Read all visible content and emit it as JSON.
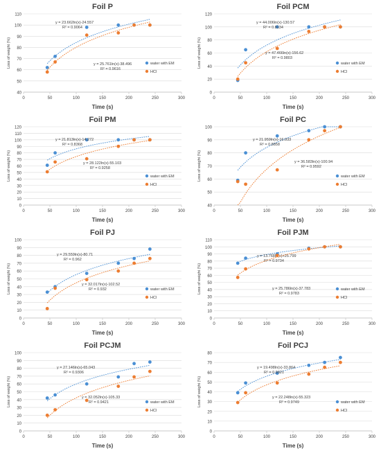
{
  "colors": {
    "water": "#4a8fd4",
    "hcl": "#ed7d31",
    "grid": "#d9d9d9",
    "axis": "#595959",
    "text": "#404040"
  },
  "chart_data": [
    {
      "type": "scatter",
      "title": "Foil P",
      "xlabel": "Time (s)",
      "ylabel": "Loss of weight (%)",
      "xlim": [
        0,
        300
      ],
      "ylim": [
        40,
        110
      ],
      "xticks": [
        0,
        50,
        100,
        150,
        200,
        250,
        300
      ],
      "yticks": [
        40,
        50,
        60,
        70,
        80,
        90,
        100,
        110
      ],
      "grid": true,
      "legend_position": "right",
      "series": [
        {
          "name": "water with EM",
          "x": [
            45,
            60,
            120,
            180,
            210,
            240
          ],
          "y": [
            62,
            72,
            98,
            100,
            100,
            100
          ],
          "trendline": {
            "equation": "y = 23.662ln(x)-24.557",
            "r2": "R² = 0.9064",
            "a": 23.662,
            "b": -24.557
          }
        },
        {
          "name": "HCl",
          "x": [
            45,
            60,
            120,
            180,
            210,
            240
          ],
          "y": [
            58,
            67,
            91,
            93,
            100,
            100
          ],
          "trendline": {
            "equation": "y = 25.761ln(x)-38.496",
            "r2": "R² = 0.9616",
            "a": 25.761,
            "b": -38.496
          }
        }
      ]
    },
    {
      "type": "scatter",
      "title": "Foil PCM",
      "xlabel": "Time (s)",
      "ylabel": "Loss of weight (%)",
      "xlim": [
        0,
        300
      ],
      "ylim": [
        0,
        120
      ],
      "xticks": [
        0,
        50,
        100,
        150,
        200,
        250,
        300
      ],
      "yticks": [
        0,
        20,
        40,
        60,
        80,
        100,
        120
      ],
      "grid": true,
      "legend_position": "right",
      "series": [
        {
          "name": "water with EM",
          "x": [
            45,
            60,
            120,
            180,
            210,
            240
          ],
          "y": [
            18,
            65,
            100,
            100,
            100,
            100
          ],
          "trendline": {
            "equation": "y = 44.006ln(x)-130.57",
            "r2": "R² = 0.8134",
            "a": 44.006,
            "b": -130.57
          }
        },
        {
          "name": "HCl",
          "x": [
            45,
            60,
            120,
            180,
            210,
            240
          ],
          "y": [
            20,
            45,
            67,
            93,
            100,
            100
          ],
          "trendline": {
            "equation": "y = 47.466ln(x)-156.62",
            "r2": "R² = 0.9803",
            "a": 47.466,
            "b": -156.62
          }
        }
      ]
    },
    {
      "type": "scatter",
      "title": "Foil PM",
      "xlabel": "Time (s)",
      "ylabel": "Loss of weight (%)",
      "xlim": [
        0,
        300
      ],
      "ylim": [
        0,
        120
      ],
      "xticks": [
        0,
        50,
        100,
        150,
        200,
        250,
        300
      ],
      "yticks": [
        0,
        10,
        20,
        30,
        40,
        50,
        60,
        70,
        80,
        90,
        100,
        110,
        120
      ],
      "grid": true,
      "legend_position": "right",
      "series": [
        {
          "name": "water with EM",
          "x": [
            45,
            60,
            120,
            180,
            210,
            240
          ],
          "y": [
            61,
            80,
            100,
            100,
            100,
            100
          ],
          "trendline": {
            "equation": "y = 21.813ln(x)-14.272",
            "r2": "R² = 0.8368",
            "a": 21.813,
            "b": -14.272
          }
        },
        {
          "name": "HCl",
          "x": [
            45,
            60,
            120,
            180,
            210,
            240
          ],
          "y": [
            51,
            66,
            71,
            90,
            100,
            100
          ],
          "trendline": {
            "equation": "y = 28.122ln(x)-55.103",
            "r2": "R² = 0.9258",
            "a": 28.122,
            "b": -55.103
          }
        }
      ]
    },
    {
      "type": "scatter",
      "title": "Foil PC",
      "xlabel": "Time (s)",
      "ylabel": "Loss of weight (%)",
      "xlim": [
        0,
        300
      ],
      "ylim": [
        40,
        100
      ],
      "xticks": [
        0,
        50,
        100,
        150,
        200,
        250,
        300
      ],
      "yticks": [
        40,
        50,
        60,
        70,
        80,
        90,
        100
      ],
      "grid": true,
      "legend_position": "right",
      "series": [
        {
          "name": "water with EM",
          "x": [
            45,
            60,
            120,
            180,
            210,
            240
          ],
          "y": [
            59,
            80,
            93,
            97,
            100,
            100
          ],
          "trendline": {
            "equation": "y = 21.959ln(x)-16.933",
            "r2": "R² = 0.8858",
            "a": 21.959,
            "b": -16.933
          }
        },
        {
          "name": "HCl",
          "x": [
            45,
            60,
            120,
            180,
            210,
            240
          ],
          "y": [
            58,
            56,
            67,
            90,
            97,
            100
          ],
          "trendline": {
            "equation": "y = 36.583ln(x)-100.94",
            "r2": "R² = 0.9592",
            "a": 36.583,
            "b": -100.94
          }
        }
      ]
    },
    {
      "type": "scatter",
      "title": "Foil PJ",
      "xlabel": "Time (s)",
      "ylabel": "Loss of weight (%)",
      "xlim": [
        0,
        300
      ],
      "ylim": [
        0,
        100
      ],
      "xticks": [
        0,
        50,
        100,
        150,
        200,
        250,
        300
      ],
      "yticks": [
        0,
        10,
        20,
        30,
        40,
        50,
        60,
        70,
        80,
        90,
        100
      ],
      "grid": true,
      "legend_position": "right",
      "series": [
        {
          "name": "water with EM",
          "x": [
            45,
            60,
            120,
            180,
            210,
            240
          ],
          "y": [
            33,
            40,
            57,
            70,
            76,
            88
          ],
          "trendline": {
            "equation": "y = 29.559ln(x)-80.71",
            "r2": "R² = 0.962",
            "a": 29.559,
            "b": -80.71
          }
        },
        {
          "name": "HCl",
          "x": [
            45,
            60,
            120,
            180,
            210,
            240
          ],
          "y": [
            12,
            38,
            49,
            60,
            70,
            76
          ],
          "trendline": {
            "equation": "y = 32.017ln(x)-102.52",
            "r2": "R² = 0.932",
            "a": 32.017,
            "b": -102.52
          }
        }
      ]
    },
    {
      "type": "scatter",
      "title": "Foil PJM",
      "xlabel": "Time (s)",
      "ylabel": "Loss of weight (%)",
      "xlim": [
        0,
        300
      ],
      "ylim": [
        0,
        110
      ],
      "xticks": [
        0,
        50,
        100,
        150,
        200,
        250,
        300
      ],
      "yticks": [
        0,
        10,
        20,
        30,
        40,
        50,
        60,
        70,
        80,
        90,
        100,
        110
      ],
      "grid": true,
      "legend_position": "right",
      "series": [
        {
          "name": "water with EM",
          "x": [
            45,
            60,
            120,
            180,
            210,
            240
          ],
          "y": [
            77,
            84,
            90,
            98,
            100,
            100
          ],
          "trendline": {
            "equation": "y = 13.768ln(x)+25.799",
            "r2": "R² = 0.9734",
            "a": 13.768,
            "b": 25.799
          }
        },
        {
          "name": "HCl",
          "x": [
            45,
            60,
            120,
            180,
            210,
            240
          ],
          "y": [
            57,
            69,
            88,
            97,
            100,
            100
          ],
          "trendline": {
            "equation": "y = 25.786ln(x)-37.783",
            "r2": "R² = 0.9783",
            "a": 25.786,
            "b": -37.783
          }
        }
      ]
    },
    {
      "type": "scatter",
      "title": "Foil PCJM",
      "xlabel": "Time (s)",
      "ylabel": "Loss of weight (%)",
      "xlim": [
        0,
        300
      ],
      "ylim": [
        0,
        100
      ],
      "xticks": [
        0,
        50,
        100,
        150,
        200,
        250,
        300
      ],
      "yticks": [
        0,
        10,
        20,
        30,
        40,
        50,
        60,
        70,
        80,
        90,
        100
      ],
      "grid": true,
      "legend_position": "right",
      "series": [
        {
          "name": "water with EM",
          "x": [
            45,
            60,
            120,
            180,
            210,
            240
          ],
          "y": [
            42,
            46,
            60,
            69,
            86,
            88
          ],
          "trendline": {
            "equation": "y = 27.146ln(x)-65.043",
            "r2": "R² = 0.9306",
            "a": 27.146,
            "b": -65.043
          }
        },
        {
          "name": "HCl",
          "x": [
            45,
            60,
            120,
            180,
            210,
            240
          ],
          "y": [
            20,
            27,
            39,
            57,
            69,
            76
          ],
          "trendline": {
            "equation": "y = 32.052ln(x)-105.33",
            "r2": "R² = 0.9421",
            "a": 32.052,
            "b": -105.33
          }
        }
      ]
    },
    {
      "type": "scatter",
      "title": "Foil PCJ",
      "xlabel": "Time (s)",
      "ylabel": "Loss of weight (%)",
      "xlim": [
        0,
        300
      ],
      "ylim": [
        0,
        80
      ],
      "xticks": [
        0,
        50,
        100,
        150,
        200,
        250,
        300
      ],
      "yticks": [
        0,
        10,
        20,
        30,
        40,
        50,
        60,
        70,
        80
      ],
      "grid": true,
      "legend_position": "right",
      "series": [
        {
          "name": "water with EM",
          "x": [
            45,
            60,
            120,
            180,
            210,
            240
          ],
          "y": [
            39,
            49,
            59,
            67,
            70,
            75
          ],
          "trendline": {
            "equation": "y = 19.498ln(x)-33.864",
            "r2": "R² = 0.9821",
            "a": 19.498,
            "b": -33.864
          }
        },
        {
          "name": "HCl",
          "x": [
            45,
            60,
            120,
            180,
            210,
            240
          ],
          "y": [
            29,
            39,
            49,
            58,
            65,
            70
          ],
          "trendline": {
            "equation": "y = 22.248ln(x)-55.323",
            "r2": "R² = 0.9749",
            "a": 22.248,
            "b": -55.323
          }
        }
      ]
    }
  ]
}
